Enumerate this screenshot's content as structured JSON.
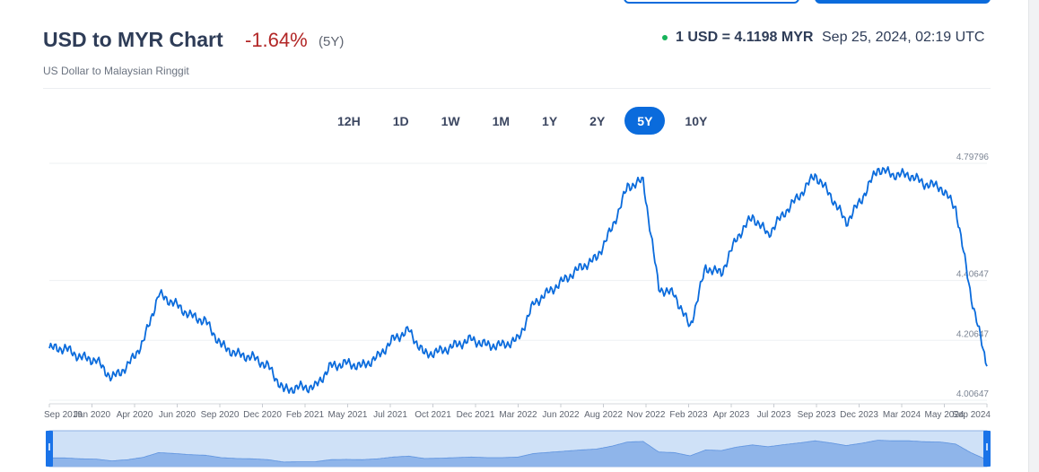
{
  "header": {
    "title": "USD to MYR Chart",
    "change": "-1.64%",
    "period": "(5Y)",
    "subtitle": "US Dollar to Malaysian Ringgit",
    "rate": "1 USD = 4.1198 MYR",
    "timestamp": "Sep 25, 2024, 02:19 UTC",
    "colors": {
      "down": "#b22626",
      "live_dot": "#16b35a",
      "accent": "#0a6bdc"
    }
  },
  "tabs": [
    {
      "label": "12H",
      "active": false
    },
    {
      "label": "1D",
      "active": false
    },
    {
      "label": "1W",
      "active": false
    },
    {
      "label": "1M",
      "active": false
    },
    {
      "label": "1Y",
      "active": false
    },
    {
      "label": "2Y",
      "active": false
    },
    {
      "label": "5Y",
      "active": true
    },
    {
      "label": "10Y",
      "active": false
    }
  ],
  "chart_data": {
    "type": "line",
    "title": "",
    "xlabel": "",
    "ylabel": "",
    "line_color": "#0a6bdc",
    "grid": true,
    "x": [
      "Sep 2019",
      "Oct 2019",
      "Nov 2019",
      "Dec 2019",
      "Jan 2020",
      "Feb 2020",
      "Mar 2020",
      "Apr 2020",
      "May 2020",
      "Jun 2020",
      "Jul 2020",
      "Aug 2020",
      "Sep 2020",
      "Oct 2020",
      "Nov 2020",
      "Dec 2020",
      "Jan 2021",
      "Feb 2021",
      "Mar 2021",
      "Apr 2021",
      "May 2021",
      "Jun 2021",
      "Jul 2021",
      "Aug 2021",
      "Sep 2021",
      "Oct 2021",
      "Nov 2021",
      "Dec 2021",
      "Jan 2022",
      "Feb 2022",
      "Mar 2022",
      "Apr 2022",
      "May 2022",
      "Jun 2022",
      "Jul 2022",
      "Aug 2022",
      "Sep 2022",
      "Oct 2022",
      "Nov 2022",
      "Dec 2022",
      "Jan 2023",
      "Feb 2023",
      "Mar 2023",
      "Apr 2023",
      "May 2023",
      "Jun 2023",
      "Jul 2023",
      "Aug 2023",
      "Sep 2023",
      "Oct 2023",
      "Nov 2023",
      "Dec 2023",
      "Jan 2024",
      "Feb 2024",
      "Mar 2024",
      "Apr 2024",
      "May 2024",
      "Jun 2024",
      "Jul 2024",
      "Aug 2024",
      "Sep 2024"
    ],
    "values": [
      4.18,
      4.18,
      4.15,
      4.14,
      4.08,
      4.12,
      4.2,
      4.36,
      4.33,
      4.29,
      4.27,
      4.19,
      4.16,
      4.15,
      4.12,
      4.04,
      4.05,
      4.05,
      4.12,
      4.13,
      4.12,
      4.15,
      4.21,
      4.24,
      4.16,
      4.17,
      4.19,
      4.21,
      4.19,
      4.19,
      4.21,
      4.33,
      4.37,
      4.41,
      4.45,
      4.48,
      4.58,
      4.72,
      4.74,
      4.38,
      4.36,
      4.25,
      4.45,
      4.43,
      4.55,
      4.62,
      4.56,
      4.63,
      4.69,
      4.76,
      4.69,
      4.6,
      4.68,
      4.78,
      4.76,
      4.76,
      4.73,
      4.72,
      4.65,
      4.35,
      4.12
    ],
    "ylim": [
      4.00647,
      4.79796
    ],
    "y_ticks": [
      {
        "value": 4.79796,
        "label": "4.79796"
      },
      {
        "value": 4.40647,
        "label": "4.40647"
      },
      {
        "value": 4.20647,
        "label": "4.20647"
      },
      {
        "value": 4.00647,
        "label": "4.00647"
      }
    ],
    "x_labels": [
      "Sep 2019",
      "Jan 2020",
      "Apr 2020",
      "Jun 2020",
      "Sep 2020",
      "Dec 2020",
      "Feb 2021",
      "May 2021",
      "Jul 2021",
      "Oct 2021",
      "Dec 2021",
      "Mar 2022",
      "Jun 2022",
      "Aug 2022",
      "Nov 2022",
      "Feb 2023",
      "Apr 2023",
      "Jul 2023",
      "Sep 2023",
      "Dec 2023",
      "Mar 2024",
      "May 2024",
      "Sep 2024"
    ],
    "navigator": {
      "fill": "#8fb5ea",
      "window": "#cfe1f7",
      "handle": "#1a73e8"
    }
  }
}
